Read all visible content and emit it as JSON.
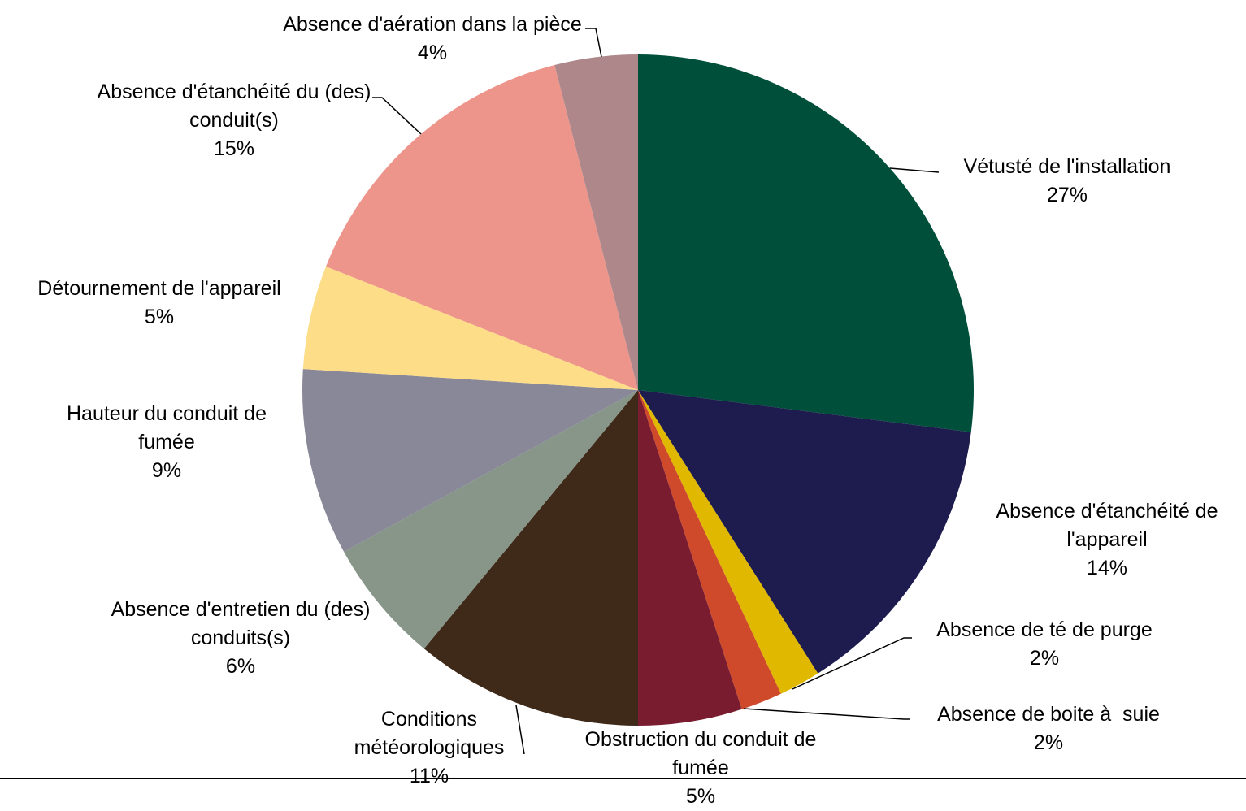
{
  "chart_data": {
    "type": "pie",
    "categories": [
      "Vétusté de l'installation",
      "Absence d'étanchéité de l'appareil",
      "Absence de té de purge",
      "Absence de boite à  suie",
      "Obstruction du conduit de fumée",
      "Conditions météorologiques",
      "Absence d'entretien du (des) conduits(s)",
      "Hauteur du conduit de fumée",
      "Détournement de l'appareil",
      "Absence d'étanchéité du (des) conduit(s)",
      "Absence d'aération dans la pièce"
    ],
    "values": [
      27,
      14,
      2,
      2,
      5,
      11,
      6,
      9,
      5,
      15,
      4
    ],
    "value_labels": [
      "27%",
      "14%",
      "2%",
      "2%",
      "5%",
      "11%",
      "6%",
      "9%",
      "5%",
      "15%",
      "4%"
    ],
    "colors": [
      "#004f3a",
      "#1e1c4e",
      "#e0b800",
      "#cf4a2a",
      "#7a1c30",
      "#3f2a1a",
      "#879689",
      "#888898",
      "#fddd88",
      "#ee958b",
      "#ad878a"
    ]
  }
}
